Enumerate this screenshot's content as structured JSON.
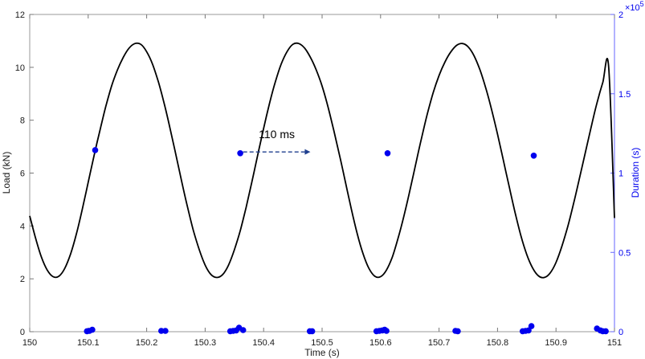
{
  "chart_data": {
    "type": "line",
    "title": "",
    "xlabel": "Time (s)",
    "ylabel": "Load (kN)",
    "y2label": "Duration (s)",
    "y2_exponent_label": "×10",
    "y2_exponent_power": "5",
    "annotation": "110 ms",
    "xlim": [
      150,
      151
    ],
    "ylim": [
      0,
      12
    ],
    "y2lim": [
      0,
      2
    ],
    "xticks": [
      150,
      150.1,
      150.2,
      150.3,
      150.4,
      150.5,
      150.6,
      150.7,
      150.8,
      150.9,
      151
    ],
    "xtick_labels": [
      "150",
      "150.1",
      "150.2",
      "150.3",
      "150.4",
      "150.5",
      "150.6",
      "150.7",
      "150.8",
      "150.9",
      "151"
    ],
    "yticks": [
      0,
      2,
      4,
      6,
      8,
      10,
      12
    ],
    "ytick_labels": [
      "0",
      "2",
      "4",
      "6",
      "8",
      "10",
      "12"
    ],
    "y2ticks": [
      0,
      0.5,
      1,
      1.5,
      2
    ],
    "y2tick_labels": [
      "0",
      "0.5",
      "1",
      "1.5",
      "2"
    ],
    "grid": false,
    "colors": {
      "load_line": "#000000",
      "duration_points": "#0000ee",
      "right_axis": "#0000ee",
      "annotation_arrow": "#1f3f8f"
    },
    "series": [
      {
        "axis": "left",
        "style": "line",
        "period_s": 0.25,
        "min_load_kN": 2.05,
        "max_load_kN": 10.9,
        "first_peak_time_s": 150.17,
        "x": [
          150.0,
          150.01,
          150.02,
          150.03,
          150.04,
          150.05,
          150.06,
          150.07,
          150.08,
          150.09,
          150.1,
          150.11,
          150.12,
          150.13,
          150.14,
          150.15,
          150.16,
          150.17,
          150.18,
          150.19,
          150.2,
          150.21,
          150.22,
          150.23,
          150.24,
          150.25,
          150.26,
          150.27,
          150.28,
          150.29,
          150.3,
          150.31,
          150.32,
          150.33,
          150.34,
          150.35,
          150.36,
          150.37,
          150.38,
          150.39,
          150.4,
          150.41,
          150.42,
          150.43,
          150.44,
          150.45,
          150.46,
          150.47,
          150.48,
          150.49,
          150.5,
          150.51,
          150.52,
          150.53,
          150.54,
          150.55,
          150.56,
          150.57,
          150.58,
          150.59,
          150.6,
          150.61,
          150.62,
          150.63,
          150.64,
          150.65,
          150.66,
          150.67,
          150.68,
          150.69,
          150.7,
          150.71,
          150.72,
          150.73,
          150.74,
          150.75,
          150.76,
          150.77,
          150.78,
          150.79,
          150.8,
          150.81,
          150.82,
          150.83,
          150.84,
          150.85,
          150.86,
          150.87,
          150.88,
          150.89,
          150.9,
          150.91,
          150.92,
          150.93,
          150.94,
          150.95,
          150.96,
          150.97,
          150.98,
          150.99,
          151.0
        ],
        "y": [
          4.38,
          3.54,
          2.82,
          2.33,
          2.08,
          2.1,
          2.4,
          2.95,
          3.71,
          4.64,
          5.65,
          6.66,
          7.61,
          8.51,
          9.29,
          9.9,
          10.38,
          10.73,
          10.9,
          10.87,
          10.59,
          10.12,
          9.45,
          8.63,
          7.69,
          6.69,
          5.67,
          4.7,
          3.82,
          3.1,
          2.52,
          2.16,
          2.05,
          2.16,
          2.52,
          3.1,
          3.82,
          4.7,
          5.67,
          6.69,
          7.69,
          8.63,
          9.45,
          10.12,
          10.59,
          10.87,
          10.9,
          10.73,
          10.38,
          9.9,
          9.29,
          8.51,
          7.61,
          6.66,
          5.65,
          4.64,
          3.71,
          2.95,
          2.4,
          2.1,
          2.08,
          2.33,
          2.82,
          3.54,
          4.38,
          5.33,
          6.33,
          7.32,
          8.24,
          9.04,
          9.69,
          10.2,
          10.58,
          10.83,
          10.9,
          10.77,
          10.43,
          9.9,
          9.21,
          8.39,
          7.47,
          6.48,
          5.48,
          4.51,
          3.63,
          2.92,
          2.41,
          2.11,
          2.05,
          2.22,
          2.62,
          3.23,
          3.97,
          4.84,
          5.79,
          6.76,
          7.73,
          8.65,
          9.42,
          10.04,
          4.3
        ]
      },
      {
        "axis": "right",
        "style": "scatter",
        "x": [
          150.112,
          150.36,
          150.612,
          150.862,
          150.098,
          150.102,
          150.107,
          150.225,
          150.232,
          150.343,
          150.348,
          150.353,
          150.358,
          150.365,
          150.479,
          150.483,
          150.593,
          150.598,
          150.603,
          150.607,
          150.61,
          150.728,
          150.732,
          150.843,
          150.848,
          150.853,
          150.858,
          150.97,
          150.976,
          150.98,
          150.985
        ],
        "y": [
          1.145,
          1.125,
          1.125,
          1.11,
          0.003,
          0.005,
          0.012,
          0.005,
          0.005,
          0.003,
          0.005,
          0.008,
          0.025,
          0.01,
          0.003,
          0.003,
          0.003,
          0.005,
          0.008,
          0.012,
          0.005,
          0.005,
          0.003,
          0.003,
          0.005,
          0.008,
          0.035,
          0.02,
          0.008,
          0.003,
          0.003
        ]
      }
    ]
  }
}
